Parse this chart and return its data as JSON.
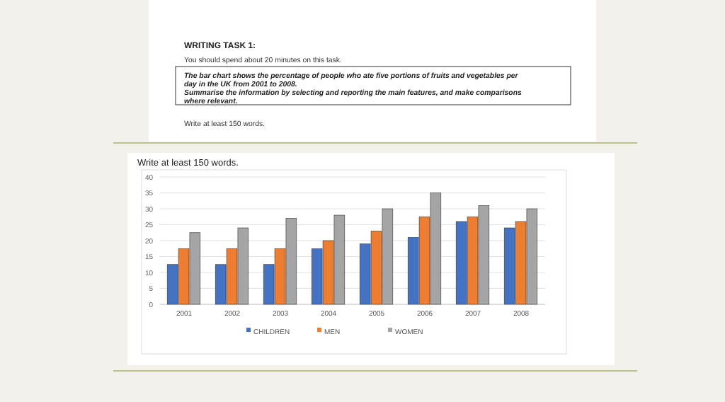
{
  "chart_data": {
    "type": "bar",
    "title": "WRITING TASK 1:",
    "subtitle": "You should spend about 20 minutes on this task.",
    "annotations": [
      "The bar chart shows the percentage of people who ate five portions of fruits and vegetables per day in the UK from 2001 to 2008.",
      "Summarise the information by selecting and reporting the main features, and make comparisons where relevant.",
      "Write at least 150 words.",
      "Write at least 150 words."
    ],
    "categories": [
      "2001",
      "2002",
      "2003",
      "2004",
      "2005",
      "2006",
      "2007",
      "2008"
    ],
    "series": [
      {
        "name": "CHILDREN",
        "color": "#4472c4",
        "values": [
          12.5,
          12.5,
          12.5,
          17.5,
          19,
          21,
          26,
          24
        ]
      },
      {
        "name": "MEN",
        "color": "#ed7d31",
        "values": [
          17.5,
          17.5,
          17.5,
          20,
          23,
          27.5,
          27.5,
          26
        ]
      },
      {
        "name": "WOMEN",
        "color": "#a5a5a5",
        "values": [
          22.5,
          24,
          27,
          28,
          30,
          35,
          31,
          30
        ]
      }
    ],
    "ylim": [
      0,
      40
    ],
    "yticks": [
      0,
      5,
      10,
      15,
      20,
      25,
      30,
      35,
      40
    ],
    "grid": "y",
    "legend": "bottom"
  }
}
